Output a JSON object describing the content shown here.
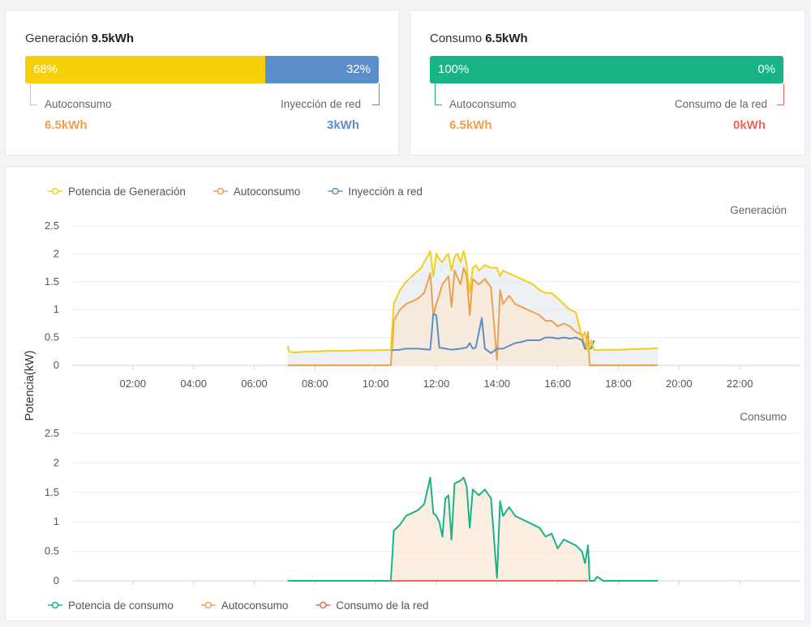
{
  "generation_card": {
    "title": "Generación",
    "total": "9.5kWh",
    "left_percent": "68%",
    "right_percent": "32%",
    "left_fraction": 0.68,
    "left_label": "Autoconsumo",
    "left_value": "6.5kWh",
    "right_label": "Inyección de red",
    "right_value": "3kWh",
    "colors": {
      "left": "#f6d10b",
      "right": "#5b8fcb",
      "left_value": "#f0a04b",
      "right_value": "#5b8fcb"
    }
  },
  "consumption_card": {
    "title": "Consumo",
    "total": "6.5kWh",
    "left_percent": "100%",
    "right_percent": "0%",
    "left_fraction": 1.0,
    "left_label": "Autoconsumo",
    "left_value": "6.5kWh",
    "right_label": "Consumo de la red",
    "right_value": "0kWh",
    "colors": {
      "left": "#19b486",
      "right": "#e8685a",
      "left_value": "#f0a04b",
      "right_value": "#e8685a"
    }
  },
  "chart_data": [
    {
      "type": "line",
      "panel_label": "Generación",
      "ylabel": "Potencia(kW)",
      "ylim": [
        0,
        2.5
      ],
      "yticks": [
        "0",
        "0.5",
        "1",
        "1.5",
        "2",
        "2.5"
      ],
      "xlim": [
        0,
        24
      ],
      "xticks": [
        "02:00",
        "04:00",
        "06:00",
        "08:00",
        "10:00",
        "12:00",
        "14:00",
        "16:00",
        "18:00",
        "20:00",
        "22:00"
      ],
      "legend_position": "top-left",
      "series": [
        {
          "name": "Potencia de Generación",
          "color": "#f3cf1a",
          "area": true,
          "x": [
            7.1,
            7.15,
            7.3,
            7.5,
            8,
            8.5,
            9,
            9.5,
            10,
            10.5,
            10.6,
            10.8,
            11,
            11.2,
            11.4,
            11.5,
            11.6,
            11.7,
            11.8,
            11.9,
            12,
            12.1,
            12.2,
            12.3,
            12.4,
            12.5,
            12.6,
            12.7,
            12.8,
            12.9,
            13,
            13.1,
            13.2,
            13.3,
            13.4,
            13.5,
            13.6,
            13.8,
            14,
            14.1,
            14.2,
            14.4,
            14.6,
            14.8,
            15,
            15.2,
            15.4,
            15.6,
            15.8,
            16,
            16.2,
            16.4,
            16.6,
            16.8,
            16.9,
            17,
            17.1,
            17.2,
            17.3,
            17.5,
            18,
            18.5,
            19,
            19.3
          ],
          "y": [
            0.35,
            0.25,
            0.23,
            0.24,
            0.25,
            0.26,
            0.26,
            0.27,
            0.27,
            0.28,
            1.1,
            1.35,
            1.5,
            1.6,
            1.7,
            1.75,
            1.85,
            1.95,
            2.05,
            1.6,
            2.0,
            1.9,
            1.85,
            1.95,
            2.0,
            1.7,
            1.95,
            2.0,
            1.85,
            2.05,
            1.8,
            1.3,
            1.75,
            1.8,
            1.7,
            1.75,
            1.8,
            1.75,
            1.75,
            1.6,
            1.7,
            1.65,
            1.6,
            1.55,
            1.5,
            1.45,
            1.35,
            1.3,
            1.3,
            1.2,
            1.1,
            1.0,
            0.95,
            0.5,
            0.6,
            0.25,
            0.45,
            0.28,
            0.27,
            0.28,
            0.28,
            0.29,
            0.3,
            0.31
          ]
        },
        {
          "name": "Autoconsumo",
          "color": "#f0a04b",
          "area": true,
          "x": [
            7.1,
            10.5,
            10.6,
            10.8,
            11,
            11.2,
            11.4,
            11.6,
            11.8,
            11.9,
            12,
            12.2,
            12.4,
            12.5,
            12.6,
            12.8,
            12.9,
            13,
            13.1,
            13.2,
            13.4,
            13.6,
            13.8,
            14,
            14.1,
            14.2,
            14.4,
            14.6,
            14.8,
            15,
            15.2,
            15.4,
            15.6,
            15.8,
            16,
            16.2,
            16.4,
            16.6,
            16.8,
            16.9,
            17,
            17.05,
            17.3,
            19.3
          ],
          "y": [
            0,
            0,
            0.8,
            1.0,
            1.1,
            1.15,
            1.2,
            1.3,
            1.65,
            0.9,
            1.1,
            1.45,
            1.6,
            1.05,
            1.7,
            1.45,
            1.75,
            1.6,
            0.9,
            1.55,
            1.45,
            1.55,
            1.4,
            0.1,
            1.35,
            1.1,
            1.25,
            1.1,
            1.05,
            1.0,
            0.95,
            0.9,
            0.8,
            0.8,
            0.7,
            0.75,
            0.7,
            0.6,
            0.55,
            0.3,
            0.6,
            0,
            0,
            0
          ]
        },
        {
          "name": "Inyección a red",
          "color": "#5b8fcb",
          "area": false,
          "x": [
            10.5,
            10.8,
            11,
            11.4,
            11.8,
            11.9,
            12,
            12.1,
            12.3,
            12.5,
            12.8,
            13,
            13.1,
            13.2,
            13.3,
            13.5,
            13.6,
            13.8,
            14,
            14.2,
            14.4,
            14.6,
            14.8,
            15,
            15.2,
            15.4,
            15.6,
            15.8,
            16,
            16.2,
            16.4,
            16.6,
            16.8,
            16.9,
            17.1,
            17.2
          ],
          "y": [
            0.27,
            0.28,
            0.3,
            0.3,
            0.28,
            0.92,
            0.9,
            0.32,
            0.3,
            0.28,
            0.3,
            0.32,
            0.4,
            0.3,
            0.32,
            0.85,
            0.3,
            0.22,
            0.3,
            0.3,
            0.35,
            0.4,
            0.42,
            0.45,
            0.45,
            0.45,
            0.5,
            0.5,
            0.48,
            0.5,
            0.48,
            0.5,
            0.45,
            0.3,
            0.3,
            0.45
          ]
        }
      ]
    },
    {
      "type": "line",
      "panel_label": "Consumo",
      "ylim": [
        0,
        2.5
      ],
      "yticks": [
        "0",
        "0.5",
        "1",
        "1.5",
        "2",
        "2.5"
      ],
      "xlim": [
        0,
        24
      ],
      "legend_position": "bottom-left",
      "series": [
        {
          "name": "Potencia de consumo",
          "color": "#19b486",
          "area": false,
          "x": [
            7.1,
            10.5,
            10.6,
            10.8,
            11,
            11.2,
            11.4,
            11.6,
            11.8,
            11.9,
            12,
            12.1,
            12.2,
            12.3,
            12.4,
            12.5,
            12.6,
            12.8,
            12.9,
            13,
            13.1,
            13.2,
            13.4,
            13.6,
            13.8,
            14,
            14.1,
            14.2,
            14.4,
            14.6,
            14.8,
            15,
            15.2,
            15.4,
            15.6,
            15.8,
            16,
            16.2,
            16.4,
            16.6,
            16.8,
            16.9,
            17,
            17.05,
            17.2,
            17.3,
            17.5,
            18,
            19.3
          ],
          "y": [
            0,
            0,
            0.85,
            0.95,
            1.1,
            1.15,
            1.2,
            1.3,
            1.75,
            1.15,
            1.1,
            1.0,
            0.75,
            1.4,
            1.45,
            0.7,
            1.65,
            1.7,
            1.75,
            1.6,
            0.9,
            1.55,
            1.45,
            1.55,
            1.4,
            0.05,
            1.35,
            1.1,
            1.25,
            1.1,
            1.05,
            1.0,
            0.95,
            0.9,
            0.75,
            0.8,
            0.55,
            0.7,
            0.65,
            0.6,
            0.5,
            0.3,
            0.6,
            0,
            0,
            0.07,
            0,
            0,
            0
          ]
        },
        {
          "name": "Autoconsumo",
          "color": "#f0a04b",
          "area": true,
          "same_as": "Potencia de consumo"
        },
        {
          "name": "Consumo de la red",
          "color": "#e8685a",
          "area": false,
          "x": [
            10.5,
            17.0
          ],
          "y": [
            0,
            0
          ]
        }
      ]
    }
  ]
}
